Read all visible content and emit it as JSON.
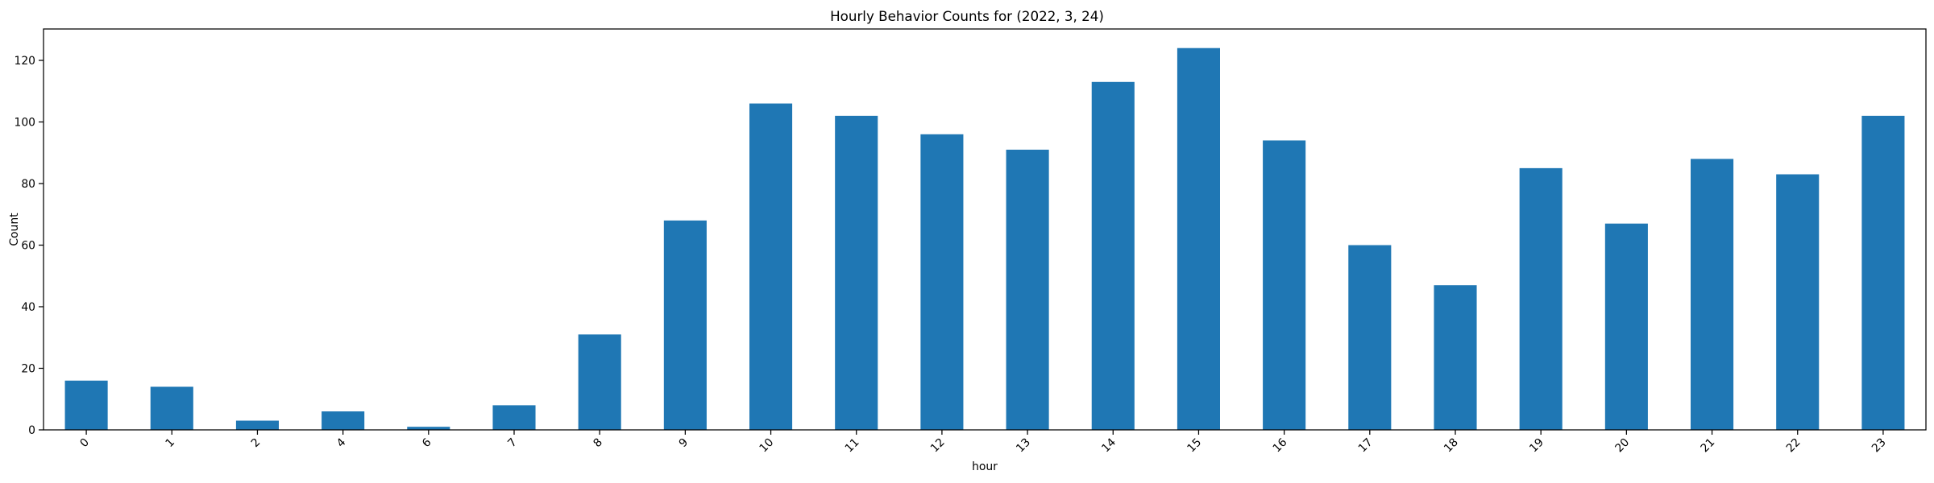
{
  "chart_data": {
    "type": "bar",
    "title": "Hourly Behavior Counts for (2022, 3, 24)",
    "xlabel": "hour",
    "ylabel": "Count",
    "categories": [
      "0",
      "1",
      "2",
      "4",
      "6",
      "7",
      "8",
      "9",
      "10",
      "11",
      "12",
      "13",
      "14",
      "15",
      "16",
      "17",
      "18",
      "19",
      "20",
      "21",
      "22",
      "23"
    ],
    "values": [
      16,
      14,
      3,
      6,
      1,
      8,
      31,
      68,
      106,
      102,
      96,
      91,
      113,
      124,
      94,
      60,
      47,
      85,
      67,
      88,
      83,
      102
    ],
    "ylim": [
      0,
      130.2
    ],
    "yticks": [
      0,
      20,
      40,
      60,
      80,
      100,
      120
    ],
    "bar_color": "#1f77b4",
    "grid": false,
    "legend": "none",
    "xtick_rotation": 45
  }
}
